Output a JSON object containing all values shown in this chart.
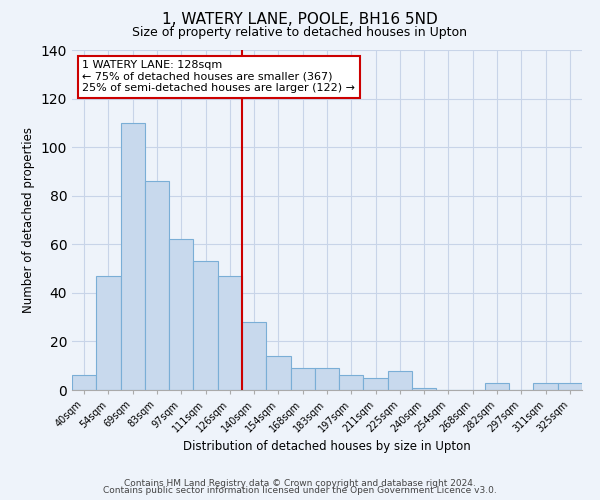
{
  "title": "1, WATERY LANE, POOLE, BH16 5ND",
  "subtitle": "Size of property relative to detached houses in Upton",
  "xlabel": "Distribution of detached houses by size in Upton",
  "ylabel": "Number of detached properties",
  "bar_labels": [
    "40sqm",
    "54sqm",
    "69sqm",
    "83sqm",
    "97sqm",
    "111sqm",
    "126sqm",
    "140sqm",
    "154sqm",
    "168sqm",
    "183sqm",
    "197sqm",
    "211sqm",
    "225sqm",
    "240sqm",
    "254sqm",
    "268sqm",
    "282sqm",
    "297sqm",
    "311sqm",
    "325sqm"
  ],
  "bar_values": [
    6,
    47,
    110,
    86,
    62,
    53,
    47,
    28,
    14,
    9,
    9,
    6,
    5,
    8,
    1,
    0,
    0,
    3,
    0,
    3,
    3
  ],
  "bar_color": "#c8d9ed",
  "bar_edge_color": "#7aaed6",
  "vline_color": "#cc0000",
  "annotation_title": "1 WATERY LANE: 128sqm",
  "annotation_line1": "← 75% of detached houses are smaller (367)",
  "annotation_line2": "25% of semi-detached houses are larger (122) →",
  "annotation_box_color": "#ffffff",
  "annotation_box_edge": "#cc0000",
  "ylim": [
    0,
    140
  ],
  "footer1": "Contains HM Land Registry data © Crown copyright and database right 2024.",
  "footer2": "Contains public sector information licensed under the Open Government Licence v3.0.",
  "background_color": "#eef3fa",
  "plot_background": "#eef3fa",
  "grid_color": "#c8d4e8",
  "title_fontsize": 11,
  "subtitle_fontsize": 9,
  "axis_label_fontsize": 8.5,
  "tick_fontsize": 7,
  "footer_fontsize": 6.5,
  "annotation_fontsize": 8
}
